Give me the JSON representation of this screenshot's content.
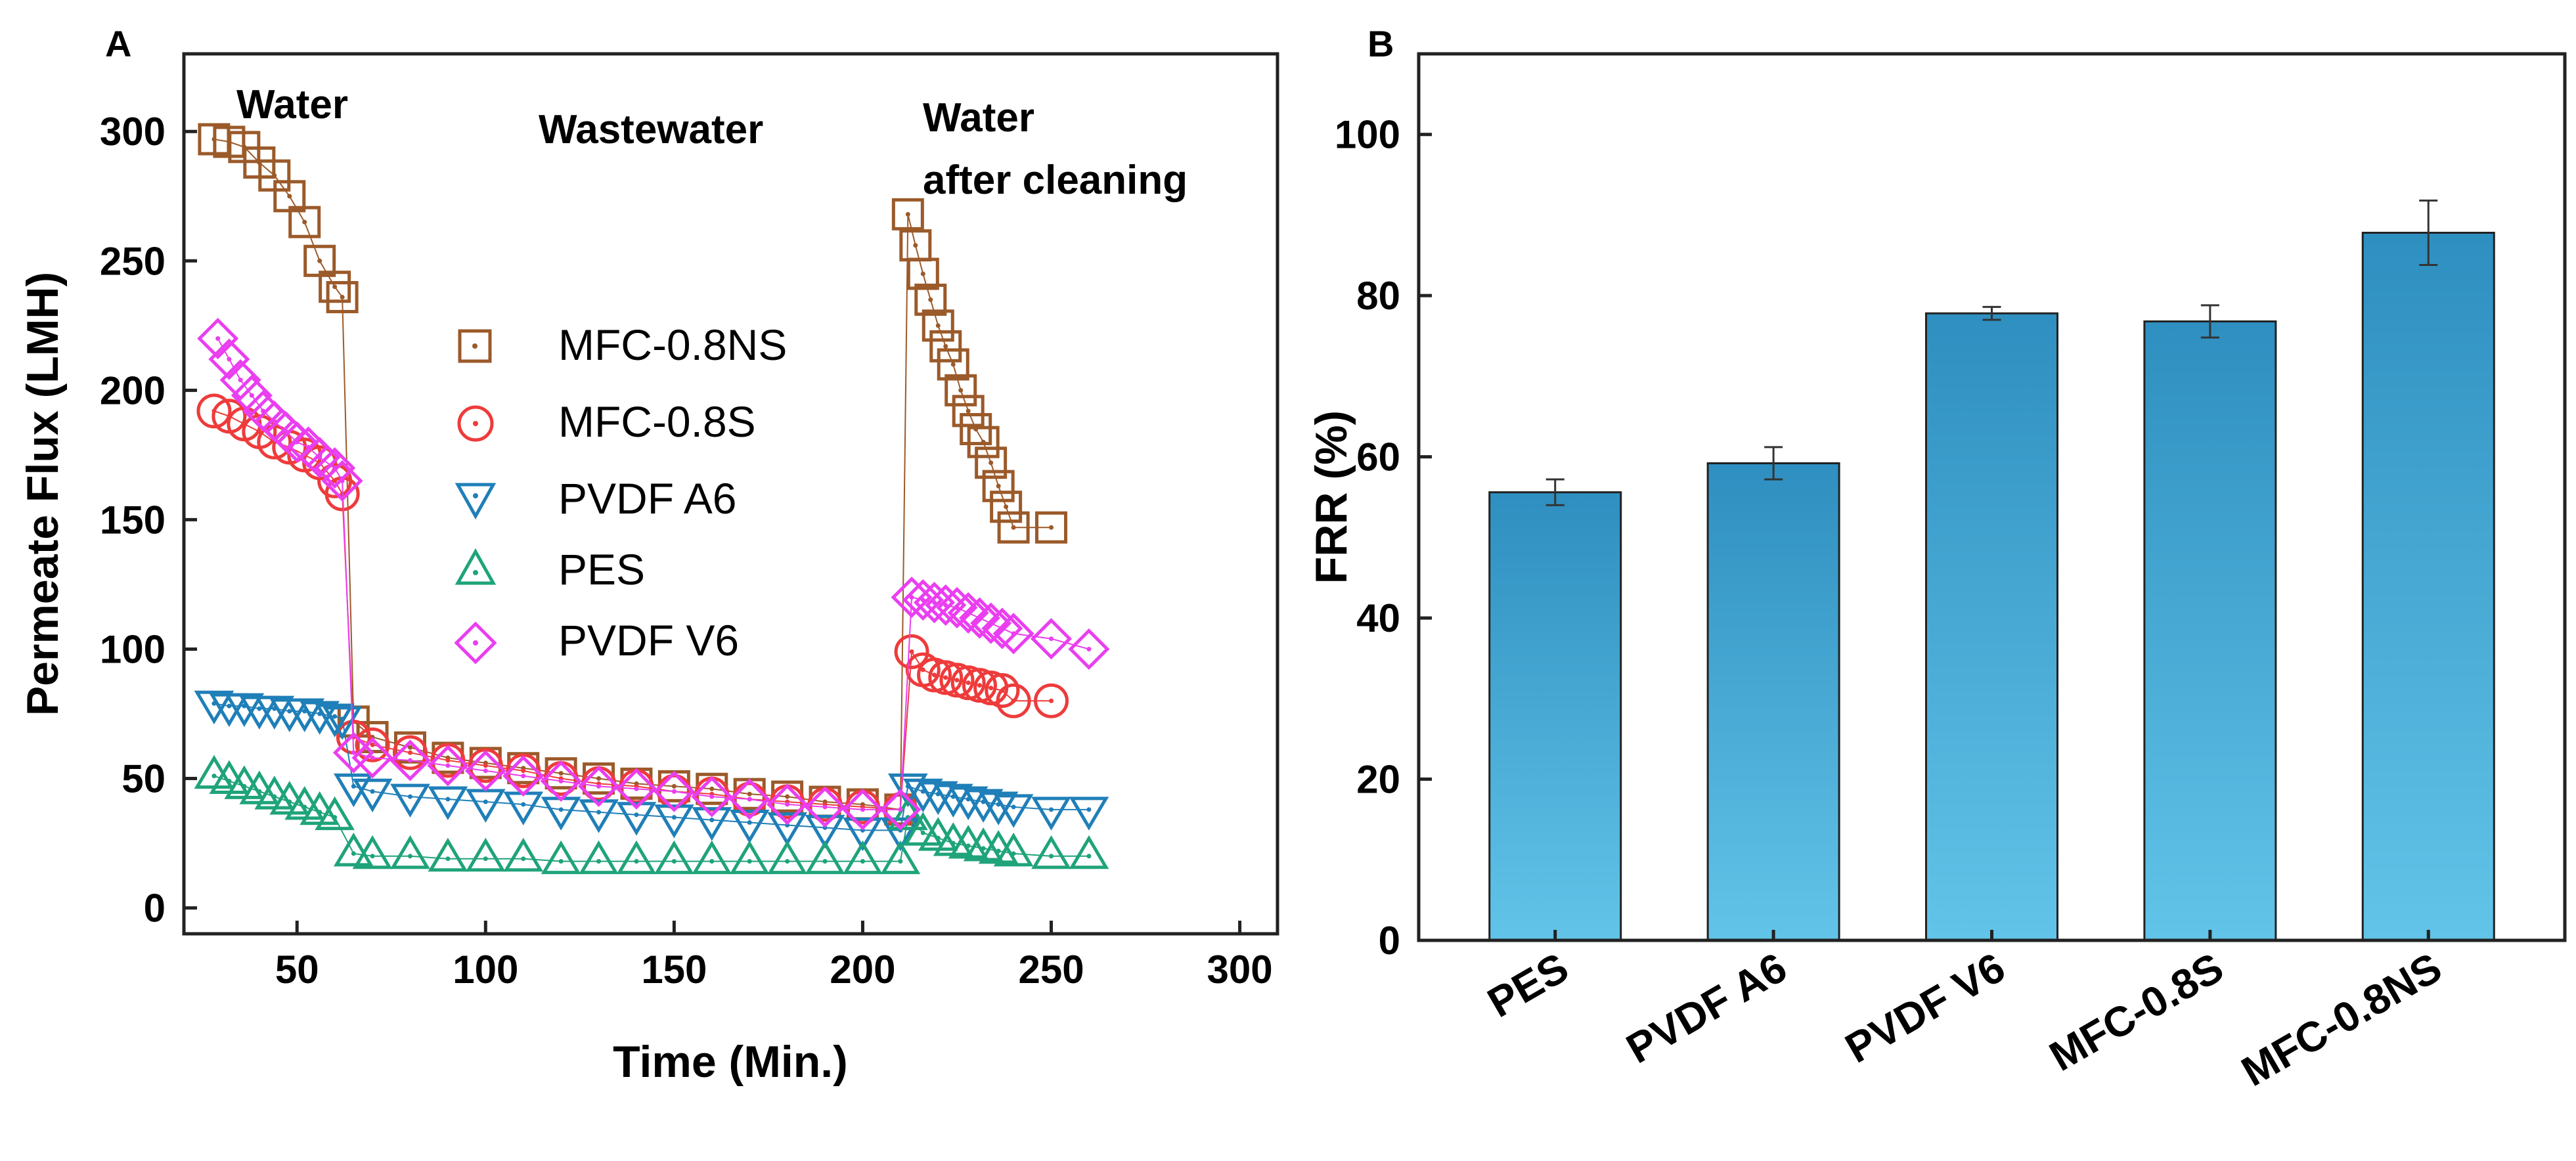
{
  "panels": {
    "a_label": "A",
    "b_label": "B"
  },
  "colors": {
    "MFC-0.8NS": "#9b5a2a",
    "MFC-0.8S": "#ee3b3b",
    "PVDF A6": "#1f7fb8",
    "PES": "#1fa37a",
    "PVDF V6": "#ea3ef0",
    "bar_top": "#2e8fc0",
    "bar_bottom": "#62c4e8"
  },
  "chart_data": [
    {
      "type": "scatter",
      "panel": "A",
      "title": "",
      "xlabel": "Time (Min.)",
      "ylabel": "Permeate Flux (LMH)",
      "xlim": [
        20,
        310
      ],
      "ylim": [
        -10,
        330
      ],
      "xticks": [
        50,
        100,
        150,
        200,
        250,
        300
      ],
      "yticks": [
        0,
        50,
        100,
        150,
        200,
        250,
        300
      ],
      "annotations": [
        "Water",
        "Wastewater",
        "Water",
        "after cleaning"
      ],
      "legend": {
        "placement": "center-left",
        "order": [
          "MFC-0.8NS",
          "MFC-0.8S",
          "PVDF A6",
          "PES",
          "PVDF V6"
        ]
      },
      "series": [
        {
          "name": "MFC-0.8NS",
          "marker": "square",
          "x": [
            28,
            32,
            36,
            40,
            44,
            48,
            52,
            56,
            60,
            62,
            65,
            70,
            80,
            90,
            100,
            110,
            120,
            130,
            140,
            150,
            160,
            170,
            180,
            190,
            200,
            210,
            212,
            214,
            216,
            218,
            220,
            222,
            224,
            226,
            228,
            230,
            232,
            234,
            236,
            238,
            240,
            250
          ],
          "y": [
            297,
            296,
            294,
            288,
            283,
            275,
            265,
            250,
            240,
            236,
            72,
            66,
            62,
            58,
            56,
            54,
            52,
            50,
            48,
            47,
            46,
            44,
            43,
            41,
            40,
            38,
            268,
            256,
            245,
            235,
            225,
            217,
            210,
            200,
            192,
            185,
            180,
            172,
            163,
            155,
            147,
            147
          ]
        },
        {
          "name": "MFC-0.8S",
          "marker": "circle",
          "x": [
            28,
            32,
            36,
            40,
            44,
            48,
            52,
            56,
            60,
            62,
            65,
            70,
            80,
            90,
            100,
            110,
            120,
            130,
            140,
            150,
            160,
            170,
            180,
            190,
            200,
            210,
            213,
            216,
            219,
            222,
            225,
            228,
            231,
            234,
            237,
            240,
            250
          ],
          "y": [
            192,
            190,
            187,
            184,
            180,
            178,
            175,
            172,
            165,
            160,
            66,
            63,
            60,
            57,
            55,
            53,
            50,
            48,
            47,
            45,
            44,
            42,
            41,
            40,
            39,
            38,
            99,
            92,
            90,
            89,
            88,
            87,
            86,
            85,
            84,
            80,
            80
          ]
        },
        {
          "name": "PVDF A6",
          "marker": "triangle-down",
          "x": [
            28,
            32,
            36,
            40,
            44,
            48,
            52,
            56,
            60,
            62,
            65,
            70,
            80,
            90,
            100,
            110,
            120,
            130,
            140,
            150,
            160,
            170,
            180,
            190,
            200,
            210,
            212,
            216,
            220,
            224,
            228,
            232,
            236,
            240,
            250,
            260
          ],
          "y": [
            79,
            78,
            78,
            77,
            77,
            76,
            76,
            75,
            74,
            73,
            47,
            45,
            43,
            42,
            41,
            40,
            38,
            37,
            36,
            35,
            34,
            33,
            32,
            31,
            30,
            30,
            47,
            45,
            44,
            43,
            42,
            41,
            40,
            39,
            38,
            38
          ]
        },
        {
          "name": "PES",
          "marker": "triangle-up",
          "x": [
            28,
            32,
            36,
            40,
            44,
            48,
            52,
            56,
            60,
            65,
            70,
            80,
            90,
            100,
            110,
            120,
            130,
            140,
            150,
            160,
            170,
            180,
            190,
            200,
            210,
            212,
            216,
            220,
            224,
            228,
            232,
            236,
            240,
            250,
            260
          ],
          "y": [
            51,
            49,
            47,
            45,
            43,
            41,
            39,
            37,
            35,
            21,
            20,
            20,
            19,
            19,
            19,
            18,
            18,
            18,
            18,
            18,
            18,
            18,
            18,
            18,
            18,
            35,
            29,
            27,
            25,
            24,
            23,
            22,
            21,
            20,
            20
          ]
        },
        {
          "name": "PVDF V6",
          "marker": "diamond",
          "x": [
            29,
            32,
            35,
            38,
            41,
            44,
            47,
            50,
            53,
            56,
            60,
            62,
            65,
            70,
            80,
            90,
            100,
            110,
            120,
            130,
            140,
            150,
            160,
            170,
            180,
            190,
            200,
            210,
            213,
            216,
            219,
            222,
            225,
            228,
            231,
            234,
            237,
            240,
            250,
            260
          ],
          "y": [
            220,
            212,
            204,
            198,
            192,
            188,
            184,
            180,
            178,
            174,
            170,
            165,
            60,
            58,
            57,
            55,
            53,
            51,
            49,
            47,
            46,
            45,
            43,
            42,
            40,
            39,
            38,
            38,
            120,
            119,
            118,
            117,
            116,
            114,
            112,
            110,
            108,
            106,
            104,
            100
          ]
        }
      ]
    },
    {
      "type": "bar",
      "panel": "B",
      "title": "",
      "xlabel": "",
      "ylabel": "FRR (%)",
      "ylim": [
        0,
        110
      ],
      "yticks": [
        0,
        20,
        40,
        60,
        80,
        100
      ],
      "categories": [
        "PES",
        "PVDF A6",
        "PVDF V6",
        "MFC-0.8S",
        "MFC-0.8NS"
      ],
      "values": [
        55.6,
        59.2,
        77.8,
        76.8,
        87.8
      ],
      "errors": [
        1.6,
        2.0,
        0.8,
        2.0,
        4.0
      ]
    }
  ]
}
